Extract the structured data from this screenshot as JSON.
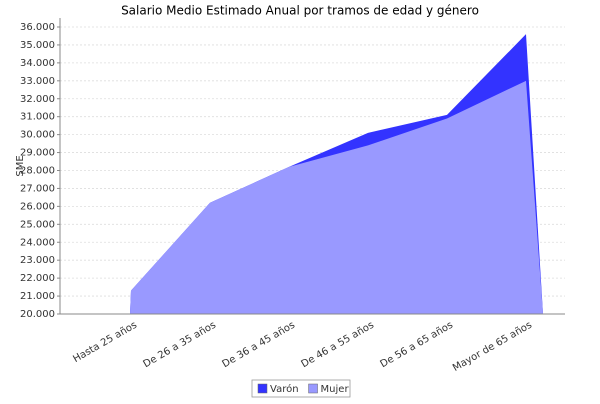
{
  "chart_data": {
    "type": "area",
    "title": "Salario Medio Estimado Anual por tramos de edad y género",
    "y_label": "SME",
    "categories": [
      "Hasta 25  años",
      "De 26  a 35  años",
      "De 36  a 45  años",
      "De 46  a 55  años",
      "De 56  a 65  años",
      "Mayor de 65  años"
    ],
    "series": [
      {
        "name": "Varón",
        "color": "#3333ff",
        "values": [
          21300,
          26200,
          28200,
          30100,
          31100,
          35600
        ]
      },
      {
        "name": "Mujer",
        "color": "#9999ff",
        "values": [
          21300,
          26200,
          28200,
          29400,
          30900,
          33000
        ]
      }
    ],
    "ylim": [
      20000,
      36000
    ],
    "yticks": [
      {
        "value": 20000,
        "label": "20.000"
      },
      {
        "value": 21000,
        "label": "21.000"
      },
      {
        "value": 22000,
        "label": "22.000"
      },
      {
        "value": 23000,
        "label": "23.000"
      },
      {
        "value": 24000,
        "label": "24.000"
      },
      {
        "value": 25000,
        "label": "25.000"
      },
      {
        "value": 26000,
        "label": "26.000"
      },
      {
        "value": 27000,
        "label": "27.000"
      },
      {
        "value": 28000,
        "label": "28.000"
      },
      {
        "value": 29000,
        "label": "29.000"
      },
      {
        "value": 30000,
        "label": "30.000"
      },
      {
        "value": 31000,
        "label": "31.000"
      },
      {
        "value": 32000,
        "label": "32.000"
      },
      {
        "value": 33000,
        "label": "33.000"
      },
      {
        "value": 34000,
        "label": "34.000"
      },
      {
        "value": 35000,
        "label": "35.000"
      },
      {
        "value": 36000,
        "label": "36.000"
      }
    ],
    "grid": true,
    "legend": "bottom"
  }
}
